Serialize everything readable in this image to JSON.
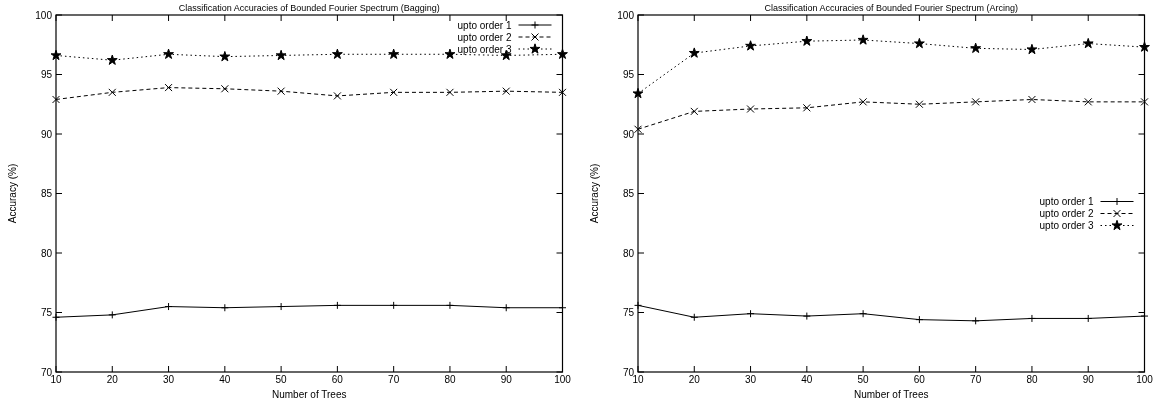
{
  "chart_data": [
    {
      "type": "line",
      "title": "Classification Accuracies of Bounded Fourier Spectrum (Bagging)",
      "xlabel": "Number of Trees",
      "ylabel": "Accuracy (%)",
      "x": [
        10,
        20,
        30,
        40,
        50,
        60,
        70,
        80,
        90,
        100
      ],
      "xlim": [
        10,
        100
      ],
      "xticks": [
        10,
        20,
        30,
        40,
        50,
        60,
        70,
        80,
        90,
        100
      ],
      "ylim": [
        70,
        100
      ],
      "yticks": [
        70,
        75,
        80,
        85,
        90,
        95,
        100
      ],
      "legend": "top right",
      "grid": false,
      "series": [
        {
          "name": "upto order 1",
          "color": "#000000",
          "line_style": "solid",
          "marker": "cross",
          "values": [
            74.6,
            74.8,
            75.5,
            75.4,
            75.5,
            75.6,
            75.6,
            75.6,
            75.4,
            75.4
          ]
        },
        {
          "name": "upto order 2",
          "color": "#000000",
          "line_style": "dashed",
          "marker": "x",
          "values": [
            92.9,
            93.5,
            93.9,
            93.8,
            93.6,
            93.2,
            93.5,
            93.5,
            93.6,
            93.5
          ]
        },
        {
          "name": "upto order 3",
          "color": "#000000",
          "line_style": "dotted",
          "marker": "star",
          "values": [
            96.6,
            96.2,
            96.7,
            96.5,
            96.6,
            96.7,
            96.7,
            96.7,
            96.6,
            96.7
          ]
        }
      ]
    },
    {
      "type": "line",
      "title": "Classification Accuracies of Bounded Fourier Spectrum (Arcing)",
      "xlabel": "Number of Trees",
      "ylabel": "Accuracy (%)",
      "x": [
        10,
        20,
        30,
        40,
        50,
        60,
        70,
        80,
        90,
        100
      ],
      "xlim": [
        10,
        100
      ],
      "xticks": [
        10,
        20,
        30,
        40,
        50,
        60,
        70,
        80,
        90,
        100
      ],
      "ylim": [
        70,
        100
      ],
      "yticks": [
        70,
        75,
        80,
        85,
        90,
        95,
        100
      ],
      "legend": "right",
      "grid": false,
      "series": [
        {
          "name": "upto order 1",
          "color": "#000000",
          "line_style": "solid",
          "marker": "cross",
          "values": [
            75.6,
            74.6,
            74.9,
            74.7,
            74.9,
            74.4,
            74.3,
            74.5,
            74.5,
            74.7
          ]
        },
        {
          "name": "upto order 2",
          "color": "#000000",
          "line_style": "dashed",
          "marker": "x",
          "values": [
            90.4,
            91.9,
            92.1,
            92.2,
            92.7,
            92.5,
            92.7,
            92.9,
            92.7,
            92.7
          ]
        },
        {
          "name": "upto order 3",
          "color": "#000000",
          "line_style": "dotted",
          "marker": "star",
          "values": [
            93.4,
            96.8,
            97.4,
            97.8,
            97.9,
            97.6,
            97.2,
            97.1,
            97.6,
            97.3
          ]
        }
      ]
    }
  ]
}
